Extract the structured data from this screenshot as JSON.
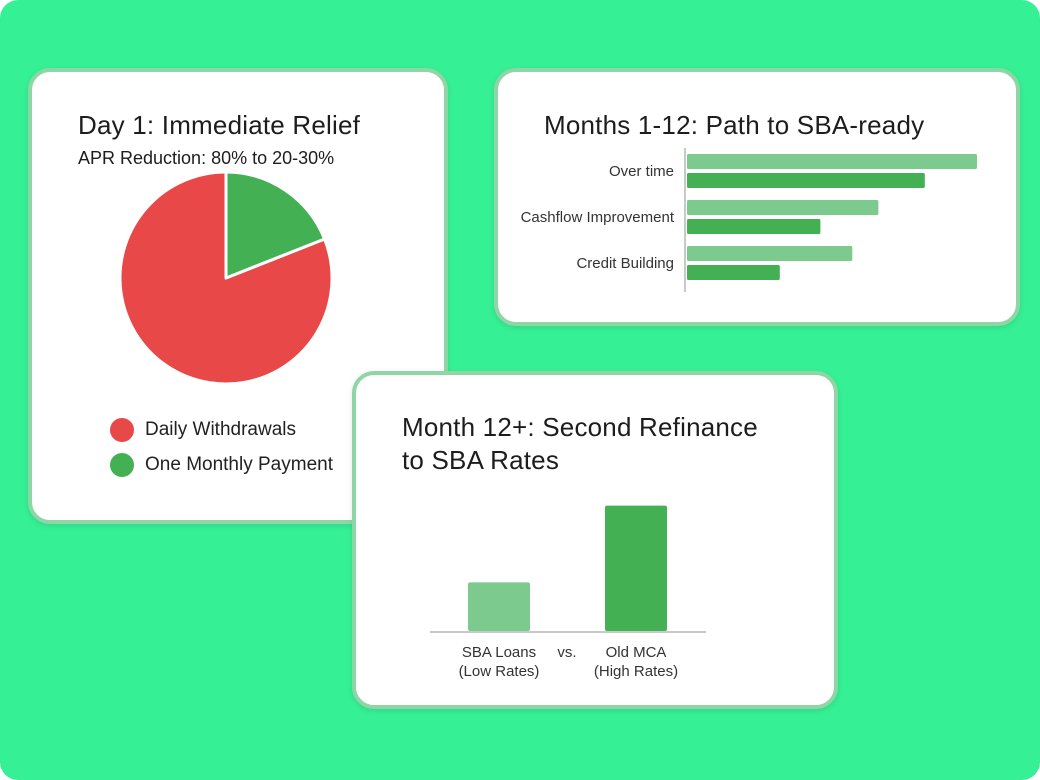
{
  "colors": {
    "background": "#36f095",
    "red": "#e84848",
    "green_light": "#7dca8e",
    "green_dark": "#43b153"
  },
  "chart_data": [
    {
      "type": "pie",
      "title": "Day 1: Immediate Relief",
      "subtitle": "APR Reduction: 80% to 20-30%",
      "slices": [
        {
          "label": "Daily Withdrawals",
          "value": 81,
          "color": "#e84848"
        },
        {
          "label": "One Monthly Payment",
          "value": 19,
          "color": "#43b153"
        }
      ],
      "legend_position": "bottom"
    },
    {
      "type": "bar",
      "orientation": "horizontal",
      "title": "Months 1-12: Path to SBA-ready",
      "categories": [
        "Over time",
        "Cashflow Improvement",
        "Credit Building"
      ],
      "series": [
        {
          "values": [
            100,
            66,
            57
          ],
          "color": "#7dca8e"
        },
        {
          "values": [
            82,
            46,
            32
          ],
          "color": "#43b153"
        }
      ],
      "xlim": [
        0,
        100
      ],
      "grid": false
    },
    {
      "type": "bar",
      "title": "Month 12+: Second Refinance to SBA Rates",
      "categories": [
        "SBA Loans\n(Low Rates)",
        "Old MCA\n(High Rates)"
      ],
      "separator_label": "vs.",
      "values": [
        38,
        98
      ],
      "colors": [
        "#7dca8e",
        "#43b153"
      ],
      "ylim": [
        0,
        100
      ],
      "grid": false
    }
  ]
}
